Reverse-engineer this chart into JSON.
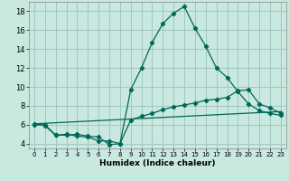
{
  "title": "",
  "xlabel": "Humidex (Indice chaleur)",
  "xlim": [
    -0.5,
    23.5
  ],
  "ylim": [
    3.5,
    19.0
  ],
  "yticks": [
    4,
    6,
    8,
    10,
    12,
    14,
    16,
    18
  ],
  "xticks": [
    0,
    1,
    2,
    3,
    4,
    5,
    6,
    7,
    8,
    9,
    10,
    11,
    12,
    13,
    14,
    15,
    16,
    17,
    18,
    19,
    20,
    21,
    22,
    23
  ],
  "background_color": "#c8e8e0",
  "grid_color": "#a0c8c0",
  "line_color": "#006858",
  "line1_x": [
    0,
    1,
    2,
    3,
    4,
    5,
    6,
    7,
    8,
    9,
    10,
    11,
    12,
    13,
    14,
    15,
    16,
    17,
    18,
    19,
    20,
    21,
    22,
    23
  ],
  "line1_y": [
    6.0,
    6.0,
    4.9,
    4.9,
    5.0,
    4.8,
    4.7,
    3.9,
    4.0,
    9.7,
    12.0,
    14.7,
    16.7,
    17.8,
    18.5,
    16.2,
    14.3,
    12.0,
    11.0,
    9.5,
    8.2,
    7.5,
    7.2,
    7.0
  ],
  "line2_x": [
    0,
    1,
    2,
    3,
    4,
    5,
    6,
    7,
    8,
    9,
    10,
    11,
    12,
    13,
    14,
    15,
    16,
    17,
    18,
    19,
    20,
    21,
    22,
    23
  ],
  "line2_y": [
    6.1,
    5.9,
    4.9,
    5.0,
    4.8,
    4.7,
    4.3,
    4.3,
    4.0,
    6.5,
    6.9,
    7.2,
    7.6,
    7.9,
    8.1,
    8.3,
    8.6,
    8.7,
    8.9,
    9.6,
    9.7,
    8.2,
    7.8,
    7.2
  ],
  "line3_x": [
    0,
    23
  ],
  "line3_y": [
    6.1,
    7.4
  ]
}
